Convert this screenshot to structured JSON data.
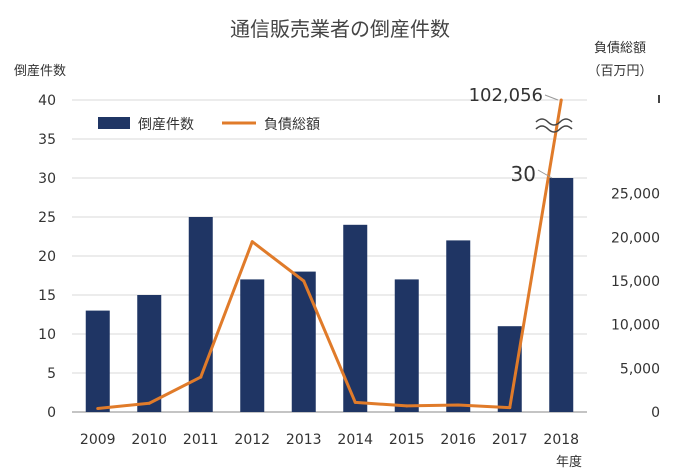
{
  "chart_data": {
    "type": "bar+line",
    "title": "通信販売業者の倒産件数",
    "y_left_label": "倒産件数",
    "y_right_label": "負債総額",
    "y_right_unit": "（百万円）",
    "x_label": "年度",
    "categories": [
      "2009",
      "2010",
      "2011",
      "2012",
      "2013",
      "2014",
      "2015",
      "2016",
      "2017",
      "2018"
    ],
    "y_left_ticks": [
      "0",
      "5",
      "10",
      "15",
      "20",
      "25",
      "30",
      "35",
      "40"
    ],
    "y_right_ticks": [
      "0",
      "5,000",
      "10,000",
      "15,000",
      "20,000",
      "25,000"
    ],
    "ylim_left": [
      0,
      40
    ],
    "ylim_right": [
      0,
      30000
    ],
    "series": [
      {
        "name": "倒産件数",
        "type": "bar",
        "axis": "left",
        "color": "#1f3564",
        "values": [
          13,
          15,
          25,
          17,
          18,
          24,
          17,
          22,
          11,
          30
        ]
      },
      {
        "name": "負債総額",
        "type": "line",
        "axis": "right",
        "color": "#e07b2a",
        "values": [
          400,
          1000,
          4000,
          19500,
          15000,
          1100,
          700,
          800,
          500,
          102056
        ]
      }
    ],
    "annotations": [
      {
        "text": "102,056",
        "series": "負債総額",
        "category": "2018"
      },
      {
        "text": "30",
        "series": "倒産件数",
        "category": "2018"
      }
    ],
    "axis_break": "right",
    "legend_position": "top-left",
    "grid": "horizontal"
  }
}
